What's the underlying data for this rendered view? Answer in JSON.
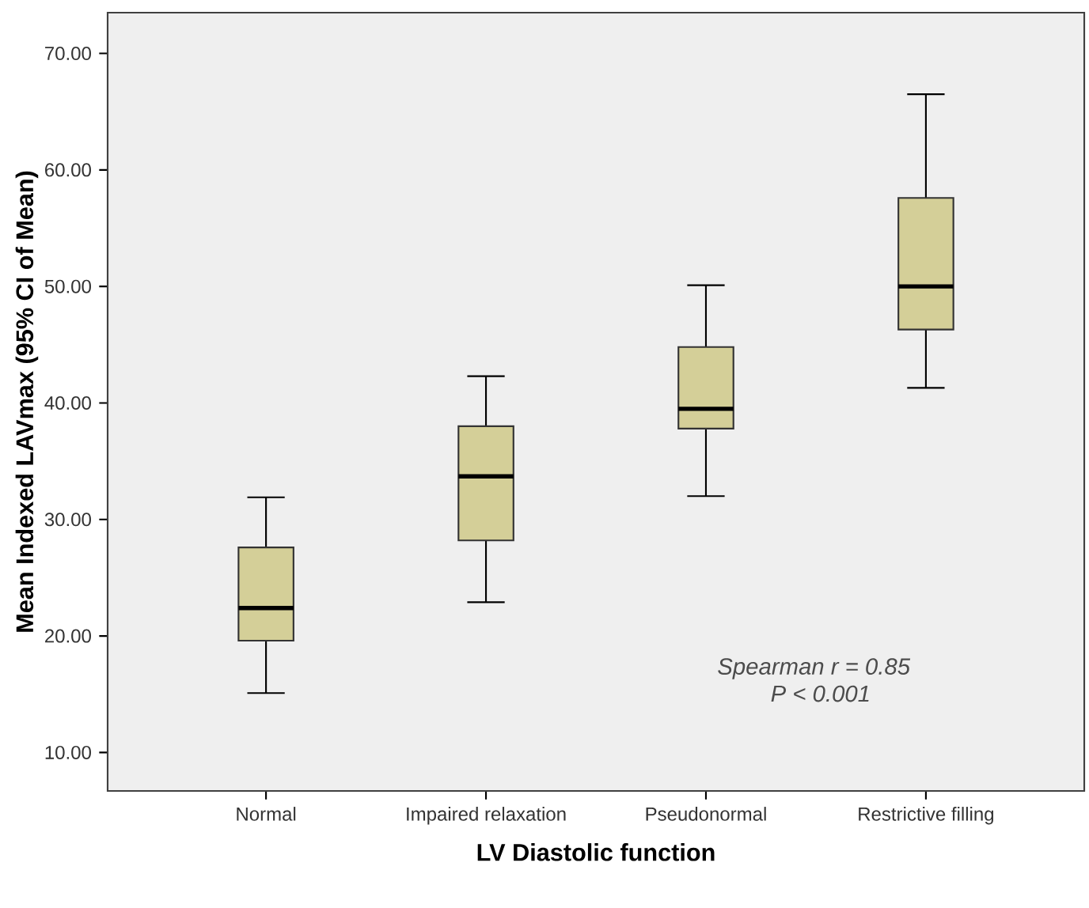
{
  "chart_data": {
    "type": "box",
    "xlabel": "LV Diastolic function",
    "ylabel": "Mean Indexed LAVmax (95% CI of Mean)",
    "categories": [
      "Normal",
      "Impaired relaxation",
      "Pseudonormal",
      "Restrictive filling"
    ],
    "color": "#d4cf98",
    "boxes": [
      {
        "low": 15.1,
        "q1": 19.6,
        "median": 22.4,
        "q3": 27.6,
        "high": 31.9
      },
      {
        "low": 22.9,
        "q1": 28.2,
        "median": 33.7,
        "q3": 38.0,
        "high": 42.3
      },
      {
        "low": 32.0,
        "q1": 37.8,
        "median": 39.5,
        "q3": 44.8,
        "high": 50.1
      },
      {
        "low": 41.3,
        "q1": 46.3,
        "median": 50.0,
        "q3": 57.6,
        "high": 66.5
      }
    ],
    "ylim": [
      6.7,
      73.5
    ],
    "yticks": [
      {
        "value": 10,
        "label": "10.00"
      },
      {
        "value": 20,
        "label": "20.00"
      },
      {
        "value": 30,
        "label": "30.00"
      },
      {
        "value": 40,
        "label": "40.00"
      },
      {
        "value": 50,
        "label": "50.00"
      },
      {
        "value": 60,
        "label": "60.00"
      },
      {
        "value": 70,
        "label": "70.00"
      }
    ],
    "annotations": [
      "Spearman r = 0.85",
      "P < 0.001"
    ]
  }
}
